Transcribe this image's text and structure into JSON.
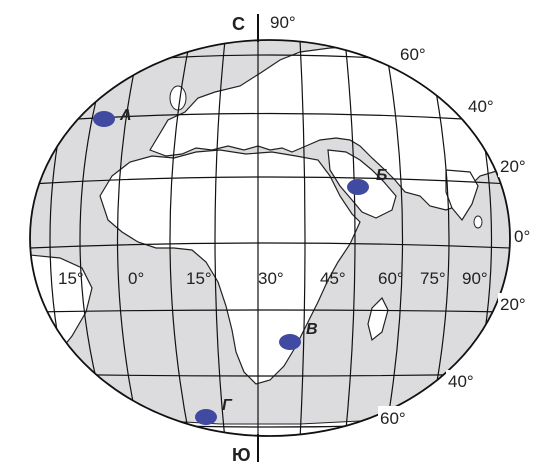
{
  "poles": {
    "north": "С",
    "south": "Ю"
  },
  "latitude_labels": {
    "deg90": "90°",
    "n60": "60°",
    "n40": "40°",
    "n20": "20°",
    "eq": "0°",
    "s20": "20°",
    "s40": "40°",
    "s60": "60°"
  },
  "longitude_labels": [
    "15°",
    "0°",
    "15°",
    "30°",
    "45°",
    "60°",
    "75°",
    "90°"
  ],
  "points": [
    {
      "id": "A",
      "label": "А",
      "color": "#3f4aa0"
    },
    {
      "id": "B",
      "label": "Б",
      "color": "#3f4aa0"
    },
    {
      "id": "V",
      "label": "В",
      "color": "#3f4aa0"
    },
    {
      "id": "G",
      "label": "Г",
      "color": "#3f4aa0"
    }
  ],
  "colors": {
    "ocean": "#dcdcde",
    "land": "#ffffff",
    "grid": "#111111",
    "points": "#3f4aa0"
  }
}
